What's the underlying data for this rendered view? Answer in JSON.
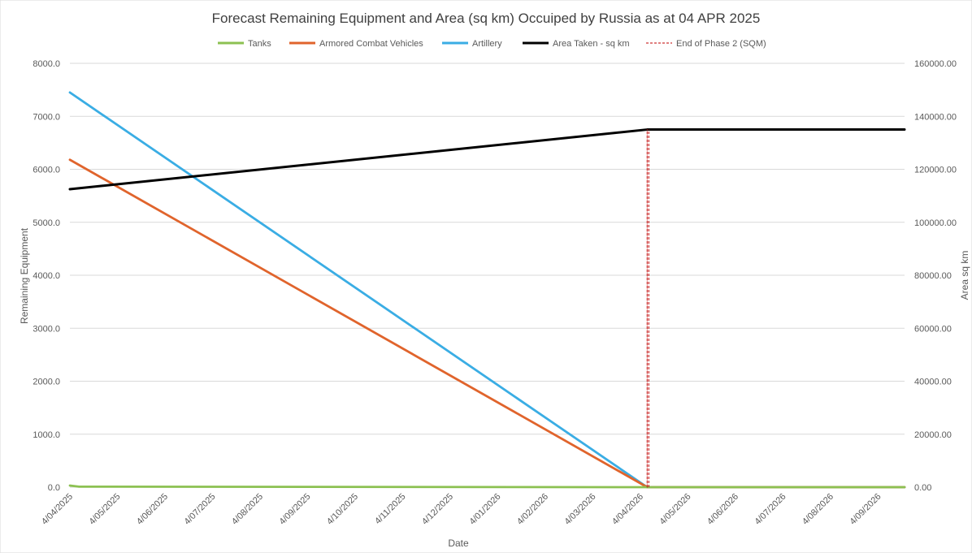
{
  "chart_data": {
    "type": "line",
    "title": "Forecast Remaining Equipment and Area (sq km) Occuiped by Russia as at 04 APR 2025",
    "xlabel": "Date",
    "ylabel": "Remaining Equipment",
    "y2label": "Area sq km",
    "x_ticks": [
      "4/04/2025",
      "4/05/2025",
      "4/06/2025",
      "4/07/2025",
      "4/08/2025",
      "4/09/2025",
      "4/10/2025",
      "4/11/2025",
      "4/12/2025",
      "4/01/2026",
      "4/02/2026",
      "4/03/2026",
      "4/04/2026",
      "4/05/2026",
      "4/06/2026",
      "4/07/2026",
      "4/08/2026",
      "4/09/2026"
    ],
    "x_range": [
      "2025-04-04",
      "2026-10-04"
    ],
    "ylim": [
      0,
      8000
    ],
    "y_ticks": [
      "0.0",
      "1000.0",
      "2000.0",
      "3000.0",
      "4000.0",
      "5000.0",
      "6000.0",
      "7000.0",
      "8000.0"
    ],
    "y2lim": [
      0,
      160000
    ],
    "y2_ticks": [
      "0.00",
      "20000.00",
      "40000.00",
      "60000.00",
      "80000.00",
      "100000.00",
      "120000.00",
      "140000.00",
      "160000.00"
    ],
    "grid": true,
    "legend_position": "top",
    "series": [
      {
        "name": "Tanks",
        "axis": "left",
        "color": "#8cc152",
        "style": "solid",
        "points": [
          [
            "2025-04-04",
            30
          ],
          [
            "2025-04-10",
            10
          ],
          [
            "2026-04-18",
            0
          ],
          [
            "2026-10-04",
            0
          ]
        ]
      },
      {
        "name": "Armored Combat Vehicles",
        "axis": "left",
        "color": "#e0642c",
        "style": "solid",
        "points": [
          [
            "2025-04-04",
            6180
          ],
          [
            "2026-04-18",
            0
          ],
          [
            "2026-10-04",
            0
          ]
        ]
      },
      {
        "name": "Artillery",
        "axis": "left",
        "color": "#3aade4",
        "style": "solid",
        "points": [
          [
            "2025-04-04",
            7450
          ],
          [
            "2026-04-18",
            0
          ],
          [
            "2026-10-04",
            0
          ]
        ]
      },
      {
        "name": "Area Taken - sq km",
        "axis": "right",
        "color": "#000000",
        "style": "solid",
        "points": [
          [
            "2025-04-04",
            112500
          ],
          [
            "2026-04-18",
            135000
          ],
          [
            "2026-10-04",
            135000
          ]
        ]
      },
      {
        "name": "End of Phase 2 (SQM)",
        "axis": "right",
        "color": "#c00000",
        "style": "dashed",
        "points": [
          [
            "2026-04-18",
            0
          ],
          [
            "2026-04-18",
            135000
          ]
        ]
      }
    ]
  }
}
